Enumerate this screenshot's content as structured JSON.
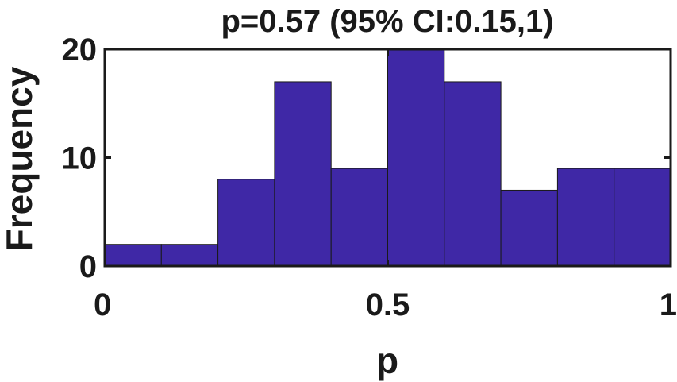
{
  "chart_data": {
    "type": "bar",
    "title": "p=0.57 (95% CI:0.15,1)",
    "xlabel": "p",
    "ylabel": "Frequency",
    "bin_edges": [
      0,
      0.1,
      0.2,
      0.3,
      0.4,
      0.5,
      0.6,
      0.7,
      0.8,
      0.9,
      1.0
    ],
    "values": [
      2,
      2,
      8,
      17,
      9,
      20,
      17,
      7,
      9,
      9
    ],
    "xlim": [
      0,
      1
    ],
    "ylim": [
      0,
      20
    ],
    "x_ticks": [
      0,
      0.5,
      1
    ],
    "x_tick_labels": [
      "0",
      "0.5",
      "1"
    ],
    "y_ticks": [
      0,
      10,
      20
    ],
    "y_tick_labels": [
      "0",
      "10",
      "20"
    ],
    "grid": false,
    "bar_color": "#3f28a6",
    "edge_color": "#1a1a1a"
  }
}
